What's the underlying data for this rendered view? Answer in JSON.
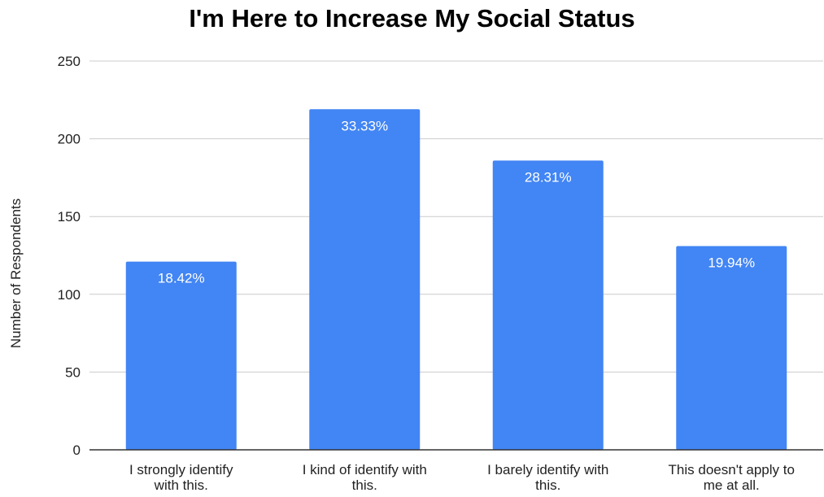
{
  "chart_data": {
    "type": "bar",
    "title": "I'm Here to Increase My Social Status",
    "xlabel": "",
    "ylabel": "Number of Respondents",
    "ylim": [
      0,
      250
    ],
    "yticks": [
      0,
      50,
      100,
      150,
      200,
      250
    ],
    "grid": true,
    "categories": [
      "I strongly identify with this.",
      "I kind of identify with this.",
      "I barely identify with this.",
      "This doesn't apply to me at all."
    ],
    "category_lines": [
      [
        "I strongly identify",
        "with this."
      ],
      [
        "I kind of identify with",
        "this."
      ],
      [
        "I barely identify with",
        "this."
      ],
      [
        "This doesn't apply to",
        "me at all."
      ]
    ],
    "values": [
      121,
      219,
      186,
      131
    ],
    "data_labels": [
      "18.42%",
      "33.33%",
      "28.31%",
      "19.94%"
    ],
    "colors": {
      "bar": "#4285f4",
      "grid": "#cccccc",
      "axis": "#333333"
    }
  }
}
